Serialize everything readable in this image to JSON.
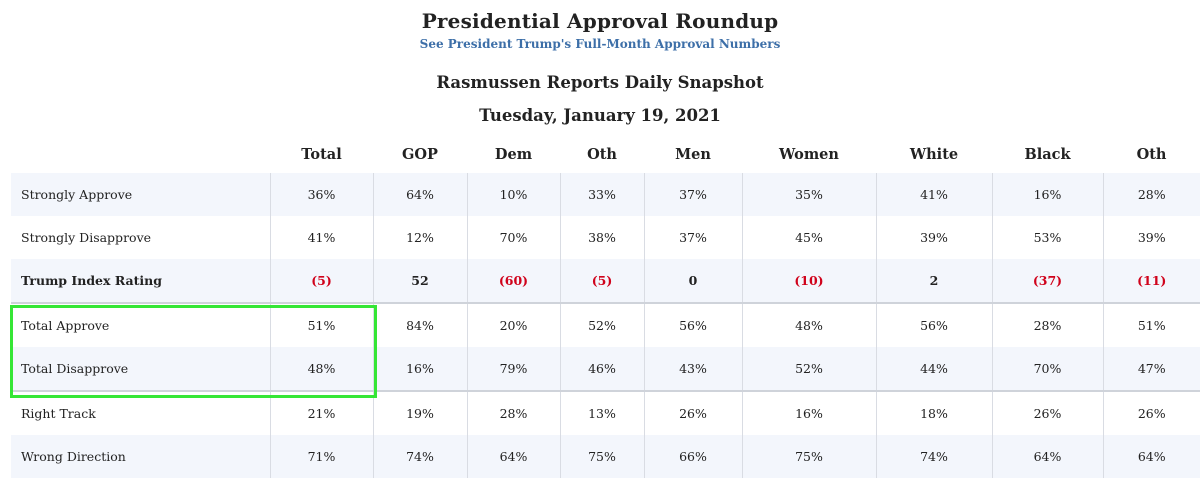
{
  "header": {
    "title": "Presidential Approval Roundup",
    "link_text": "See President Trump's Full-Month Approval Numbers",
    "snapshot_title": "Rasmussen Reports Daily Snapshot",
    "date": "Tuesday, January 19, 2021"
  },
  "table": {
    "columns": [
      "",
      "Total",
      "GOP",
      "Dem",
      "Oth",
      "Men",
      "Women",
      "White",
      "Black",
      "Oth"
    ],
    "rows": [
      {
        "label": "Strongly Approve",
        "values": [
          "36%",
          "64%",
          "10%",
          "33%",
          "37%",
          "35%",
          "41%",
          "16%",
          "28%"
        ]
      },
      {
        "label": "Strongly Disapprove",
        "values": [
          "41%",
          "12%",
          "70%",
          "38%",
          "37%",
          "45%",
          "39%",
          "53%",
          "39%"
        ]
      },
      {
        "label": "Trump Index Rating",
        "values": [
          "(5)",
          "52",
          "(60)",
          "(5)",
          "0",
          "(10)",
          "2",
          "(37)",
          "(11)"
        ]
      },
      {
        "label": "Total Approve",
        "values": [
          "51%",
          "84%",
          "20%",
          "52%",
          "56%",
          "48%",
          "56%",
          "28%",
          "51%"
        ]
      },
      {
        "label": "Total Disapprove",
        "values": [
          "48%",
          "16%",
          "79%",
          "46%",
          "43%",
          "52%",
          "44%",
          "70%",
          "47%"
        ]
      },
      {
        "label": "Right Track",
        "values": [
          "21%",
          "19%",
          "28%",
          "13%",
          "26%",
          "16%",
          "18%",
          "26%",
          "26%"
        ]
      },
      {
        "label": "Wrong Direction",
        "values": [
          "71%",
          "74%",
          "64%",
          "75%",
          "66%",
          "75%",
          "74%",
          "64%",
          "64%"
        ]
      }
    ]
  },
  "colors": {
    "link": "#3d6fa8",
    "negative": "#d0021b",
    "row_shade": "#f3f6fc",
    "highlight_box": "#35e635"
  }
}
